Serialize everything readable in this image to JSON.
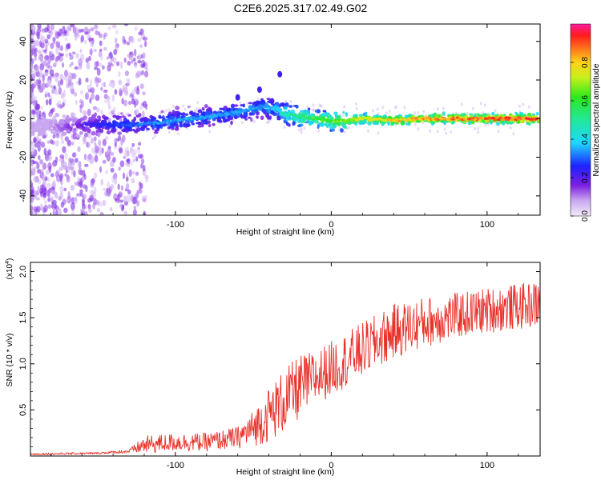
{
  "figure": {
    "title": "C2E6.2025.317.02.49.G02"
  },
  "chart_data": [
    {
      "type": "heatmap",
      "xlabel": "Height of straight line (km)",
      "ylabel": "Frequency (Hz)",
      "xlim": [
        -193,
        134
      ],
      "ylim": [
        -50,
        49
      ],
      "xticks": [
        -100,
        0,
        100
      ],
      "yticks": [
        -40,
        -20,
        0,
        20,
        40
      ],
      "ridge": {
        "x": [
          -190,
          -170,
          -150,
          -130,
          -110,
          -90,
          -70,
          -55,
          -45,
          -35,
          -28,
          -20,
          -10,
          0,
          10,
          20,
          40,
          60,
          80,
          100,
          120,
          134
        ],
        "freq": [
          -4,
          -4,
          -3,
          -3,
          -2,
          0,
          2,
          4,
          6,
          5,
          2,
          1,
          0,
          -1,
          -1,
          0,
          -1,
          0,
          0,
          0,
          0,
          0
        ],
        "amplitude": [
          0.05,
          0.15,
          0.25,
          0.3,
          0.35,
          0.35,
          0.35,
          0.35,
          0.35,
          0.4,
          0.5,
          0.55,
          0.6,
          0.65,
          0.7,
          0.75,
          0.8,
          0.85,
          0.88,
          0.9,
          0.92,
          0.92
        ]
      },
      "colorbar": {
        "label": "Normalized spectral amplitude",
        "range": [
          0,
          1
        ],
        "ticks": [
          "0.0",
          "0.2",
          "0.4",
          "0.6",
          "0.8"
        ],
        "tick_values": [
          0,
          0.2,
          0.4,
          0.6,
          0.8
        ],
        "colormap": "rainbow"
      }
    },
    {
      "type": "line",
      "xlabel": "Height of straight line (km)",
      "ylabel": "SNR (10 * v/v)",
      "yscale_label": "(x10",
      "yscale_exp": "4",
      "yscale_close": ")",
      "xlim": [
        -193,
        134
      ],
      "ylim": [
        0,
        2.1
      ],
      "xticks": [
        -100,
        0,
        100
      ],
      "yticks": [
        "0.5",
        "1.0",
        "1.5",
        "2.0"
      ],
      "ytick_values": [
        0.5,
        1.0,
        1.5,
        2.0
      ],
      "series": [
        {
          "color": "#e8312a",
          "trend_x": [
            -193,
            -150,
            -130,
            -120,
            -100,
            -80,
            -60,
            -50,
            -40,
            -30,
            -20,
            -10,
            0,
            10,
            20,
            30,
            40,
            60,
            80,
            100,
            120,
            134
          ],
          "trend_y": [
            0.02,
            0.03,
            0.05,
            0.12,
            0.15,
            0.15,
            0.2,
            0.3,
            0.45,
            0.6,
            0.75,
            0.85,
            0.95,
            1.05,
            1.15,
            1.25,
            1.35,
            1.45,
            1.52,
            1.58,
            1.62,
            1.65
          ],
          "noise": [
            0.01,
            0.01,
            0.02,
            0.1,
            0.1,
            0.1,
            0.12,
            0.2,
            0.3,
            0.35,
            0.35,
            0.3,
            0.3,
            0.3,
            0.3,
            0.3,
            0.3,
            0.28,
            0.25,
            0.25,
            0.25,
            0.25
          ]
        }
      ]
    }
  ]
}
